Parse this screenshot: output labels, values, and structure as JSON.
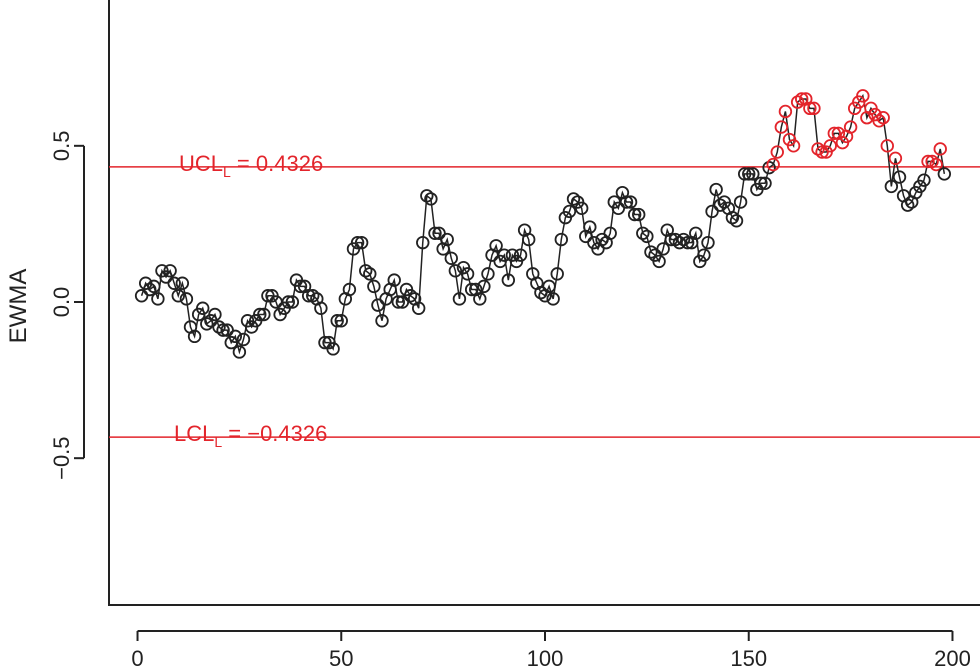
{
  "chart_data": {
    "type": "line",
    "title": "",
    "xlabel": "",
    "ylabel": "EWMA",
    "xlim": [
      -7,
      207
    ],
    "ylim": [
      -0.97,
      0.97
    ],
    "x_ticks": [
      0,
      50,
      100,
      150,
      200
    ],
    "x_tick_labels": [
      "0",
      "50",
      "100",
      "150",
      "200"
    ],
    "y_ticks": [
      -0.5,
      0.0,
      0.5
    ],
    "y_tick_labels": [
      "−0.5",
      "0.0",
      "0.5"
    ],
    "grid": false,
    "limits": {
      "ucl": {
        "value": 0.4326,
        "label_main": "UCL",
        "label_sub": "L",
        "label_rest": " = 0.4326"
      },
      "lcl": {
        "value": -0.4326,
        "label_main": "LCL",
        "label_sub": "L",
        "label_rest": " = −0.4326"
      }
    },
    "colors": {
      "in_control": "#222222",
      "out_of_control": "#e3242b",
      "limit_line": "#e3242b"
    },
    "series": [
      {
        "marker": "open-circle",
        "x_start": 1,
        "values": [
          0.02,
          0.06,
          0.04,
          0.05,
          0.01,
          0.1,
          0.08,
          0.1,
          0.06,
          0.02,
          0.06,
          0.01,
          -0.08,
          -0.11,
          -0.04,
          -0.02,
          -0.07,
          -0.06,
          -0.04,
          -0.08,
          -0.09,
          -0.09,
          -0.13,
          -0.11,
          -0.16,
          -0.12,
          -0.06,
          -0.08,
          -0.06,
          -0.04,
          -0.04,
          0.02,
          0.02,
          0.0,
          -0.04,
          -0.02,
          0.0,
          0.0,
          0.07,
          0.05,
          0.05,
          0.02,
          0.02,
          0.01,
          -0.02,
          -0.13,
          -0.13,
          -0.15,
          -0.06,
          -0.06,
          0.01,
          0.04,
          0.17,
          0.19,
          0.19,
          0.1,
          0.09,
          0.05,
          -0.01,
          -0.06,
          0.01,
          0.04,
          0.07,
          0.0,
          0.0,
          0.04,
          0.02,
          0.01,
          -0.02,
          0.19,
          0.34,
          0.33,
          0.22,
          0.22,
          0.17,
          0.2,
          0.14,
          0.1,
          0.01,
          0.11,
          0.09,
          0.04,
          0.04,
          0.01,
          0.05,
          0.09,
          0.15,
          0.18,
          0.13,
          0.15,
          0.07,
          0.15,
          0.13,
          0.15,
          0.23,
          0.2,
          0.09,
          0.06,
          0.03,
          0.02,
          0.05,
          0.01,
          0.09,
          0.2,
          0.27,
          0.29,
          0.33,
          0.32,
          0.3,
          0.21,
          0.24,
          0.19,
          0.17,
          0.2,
          0.19,
          0.22,
          0.32,
          0.3,
          0.35,
          0.32,
          0.32,
          0.28,
          0.28,
          0.22,
          0.21,
          0.16,
          0.15,
          0.13,
          0.17,
          0.23,
          0.2,
          0.2,
          0.19,
          0.2,
          0.19,
          0.19,
          0.22,
          0.13,
          0.15,
          0.19,
          0.29,
          0.36,
          0.31,
          0.32,
          0.3,
          0.27,
          0.26,
          0.32,
          0.41,
          0.41,
          0.41,
          0.36,
          0.38,
          0.38,
          0.43,
          0.44,
          0.48,
          0.56,
          0.61,
          0.52,
          0.5,
          0.64,
          0.65,
          0.65,
          0.62,
          0.62,
          0.49,
          0.48,
          0.48,
          0.5,
          0.54,
          0.54,
          0.51,
          0.53,
          0.56,
          0.62,
          0.64,
          0.66,
          0.59,
          0.62,
          0.6,
          0.58,
          0.59,
          0.5,
          0.37,
          0.46,
          0.4,
          0.34,
          0.31,
          0.32,
          0.35,
          0.37,
          0.39,
          0.45,
          0.45,
          0.44,
          0.49,
          0.41
        ]
      }
    ]
  }
}
